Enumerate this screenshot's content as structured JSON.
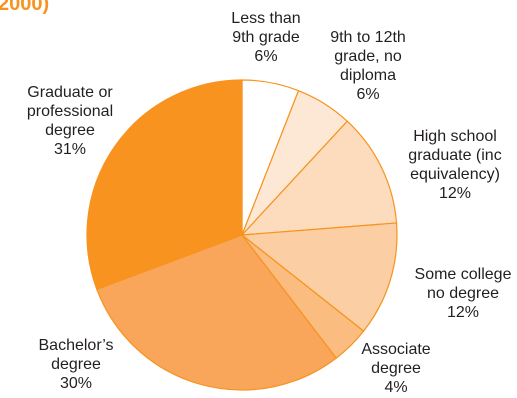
{
  "chart_data": {
    "type": "pie",
    "title": "2000)",
    "start_angle_deg": 90,
    "direction": "clockwise",
    "slices": [
      {
        "label_lines": [
          "Less than",
          "9th grade"
        ],
        "value": 6,
        "value_label": "6%",
        "color": "#ffffff"
      },
      {
        "label_lines": [
          "9th to 12th",
          "grade, no",
          "diploma"
        ],
        "value": 6,
        "value_label": "6%",
        "color": "#fde8d6"
      },
      {
        "label_lines": [
          "High school",
          "graduate (inc",
          "equivalency)"
        ],
        "value": 12,
        "value_label": "12%",
        "color": "#fcdcbd"
      },
      {
        "label_lines": [
          "Some college",
          "no degree"
        ],
        "value": 12,
        "value_label": "12%",
        "color": "#fbcea3"
      },
      {
        "label_lines": [
          "Associate",
          "degree"
        ],
        "value": 4,
        "value_label": "4%",
        "color": "#fbbd7f"
      },
      {
        "label_lines": [
          "Bachelor’s",
          "degree"
        ],
        "value": 30,
        "value_label": "30%",
        "color": "#f9a65a"
      },
      {
        "label_lines": [
          "Graduate or",
          "professional",
          "degree"
        ],
        "value": 31,
        "value_label": "31%",
        "color": "#f7931e"
      }
    ]
  }
}
